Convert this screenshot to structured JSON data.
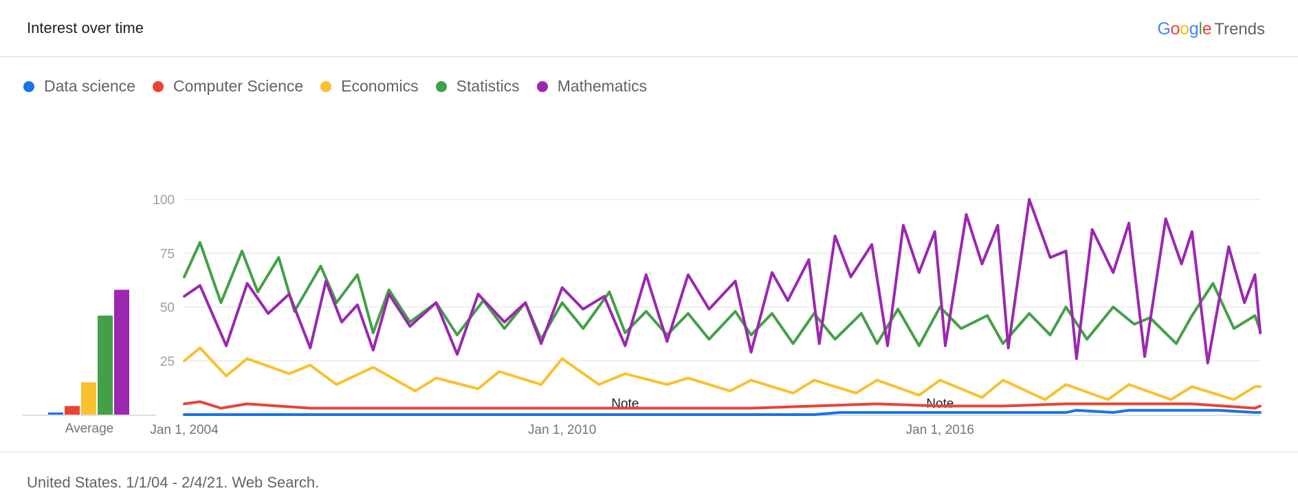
{
  "header": {
    "title": "Interest over time",
    "logo_letters": [
      {
        "ch": "G",
        "color": "#4285F4"
      },
      {
        "ch": "o",
        "color": "#EA4335"
      },
      {
        "ch": "o",
        "color": "#FBBC05"
      },
      {
        "ch": "g",
        "color": "#4285F4"
      },
      {
        "ch": "l",
        "color": "#34A853"
      },
      {
        "ch": "e",
        "color": "#EA4335"
      }
    ],
    "logo_suffix": "Trends"
  },
  "footer": {
    "text": "United States. 1/1/04 - 2/4/21. Web Search."
  },
  "chart_data": {
    "type": "line",
    "title": "",
    "x_range": [
      "2004-01",
      "2021-02"
    ],
    "x_ticks": [
      "Jan 1, 2004",
      "Jan 1, 2010",
      "Jan 1, 2016"
    ],
    "y_ticks": [
      25,
      50,
      75,
      100
    ],
    "ylim": [
      0,
      100
    ],
    "grid": true,
    "legend": "top-left",
    "average_label": "Average",
    "notes": [
      {
        "date": "2011-01",
        "label": "Note"
      },
      {
        "date": "2016-01",
        "label": "Note"
      }
    ],
    "series": [
      {
        "name": "Data science",
        "color": "#1A73E8",
        "average": 1,
        "keypoints": [
          [
            "2004-01",
            0
          ],
          [
            "2014-01",
            0
          ],
          [
            "2014-06",
            1
          ],
          [
            "2015-06",
            1
          ],
          [
            "2018-01",
            1
          ],
          [
            "2018-03",
            2
          ],
          [
            "2018-10",
            1
          ],
          [
            "2019-01",
            2
          ],
          [
            "2020-06",
            2
          ],
          [
            "2021-01",
            1
          ],
          [
            "2021-02",
            1
          ]
        ]
      },
      {
        "name": "Computer Science",
        "color": "#EA4335",
        "average": 4,
        "keypoints": [
          [
            "2004-01",
            5
          ],
          [
            "2004-04",
            6
          ],
          [
            "2004-08",
            3
          ],
          [
            "2005-01",
            5
          ],
          [
            "2006-01",
            3
          ],
          [
            "2007-01",
            3
          ],
          [
            "2008-01",
            3
          ],
          [
            "2009-01",
            3
          ],
          [
            "2010-01",
            3
          ],
          [
            "2011-01",
            3
          ],
          [
            "2012-01",
            3
          ],
          [
            "2013-01",
            3
          ],
          [
            "2014-01",
            4
          ],
          [
            "2015-01",
            5
          ],
          [
            "2016-01",
            4
          ],
          [
            "2017-01",
            4
          ],
          [
            "2018-01",
            5
          ],
          [
            "2019-01",
            5
          ],
          [
            "2020-01",
            5
          ],
          [
            "2021-01",
            3
          ],
          [
            "2021-02",
            4
          ]
        ]
      },
      {
        "name": "Economics",
        "color": "#FBC02D",
        "average": 15,
        "keypoints": [
          [
            "2004-01",
            25
          ],
          [
            "2004-04",
            31
          ],
          [
            "2004-09",
            18
          ],
          [
            "2005-01",
            26
          ],
          [
            "2005-09",
            19
          ],
          [
            "2006-01",
            23
          ],
          [
            "2006-06",
            14
          ],
          [
            "2007-01",
            22
          ],
          [
            "2007-09",
            11
          ],
          [
            "2008-01",
            17
          ],
          [
            "2008-09",
            12
          ],
          [
            "2009-01",
            20
          ],
          [
            "2009-09",
            14
          ],
          [
            "2010-01",
            26
          ],
          [
            "2010-08",
            14
          ],
          [
            "2011-01",
            19
          ],
          [
            "2011-09",
            14
          ],
          [
            "2012-01",
            17
          ],
          [
            "2012-09",
            11
          ],
          [
            "2013-01",
            16
          ],
          [
            "2013-09",
            10
          ],
          [
            "2014-01",
            16
          ],
          [
            "2014-09",
            10
          ],
          [
            "2015-01",
            16
          ],
          [
            "2015-09",
            9
          ],
          [
            "2016-01",
            16
          ],
          [
            "2016-09",
            8
          ],
          [
            "2017-01",
            16
          ],
          [
            "2017-09",
            7
          ],
          [
            "2018-01",
            14
          ],
          [
            "2018-09",
            7
          ],
          [
            "2019-01",
            14
          ],
          [
            "2019-09",
            7
          ],
          [
            "2020-01",
            13
          ],
          [
            "2020-09",
            7
          ],
          [
            "2021-01",
            13
          ],
          [
            "2021-02",
            13
          ]
        ]
      },
      {
        "name": "Statistics",
        "color": "#43A047",
        "average": 46,
        "keypoints": [
          [
            "2004-01",
            64
          ],
          [
            "2004-04",
            80
          ],
          [
            "2004-08",
            52
          ],
          [
            "2004-12",
            76
          ],
          [
            "2005-03",
            57
          ],
          [
            "2005-07",
            73
          ],
          [
            "2005-10",
            48
          ],
          [
            "2006-03",
            69
          ],
          [
            "2006-06",
            52
          ],
          [
            "2006-10",
            65
          ],
          [
            "2007-01",
            38
          ],
          [
            "2007-04",
            58
          ],
          [
            "2007-08",
            43
          ],
          [
            "2008-01",
            52
          ],
          [
            "2008-05",
            37
          ],
          [
            "2008-10",
            53
          ],
          [
            "2009-02",
            40
          ],
          [
            "2009-06",
            52
          ],
          [
            "2009-09",
            35
          ],
          [
            "2010-01",
            52
          ],
          [
            "2010-05",
            40
          ],
          [
            "2010-10",
            57
          ],
          [
            "2011-01",
            38
          ],
          [
            "2011-05",
            48
          ],
          [
            "2011-09",
            37
          ],
          [
            "2012-01",
            47
          ],
          [
            "2012-05",
            35
          ],
          [
            "2012-10",
            48
          ],
          [
            "2013-01",
            37
          ],
          [
            "2013-05",
            47
          ],
          [
            "2013-09",
            33
          ],
          [
            "2014-01",
            47
          ],
          [
            "2014-05",
            35
          ],
          [
            "2014-10",
            47
          ],
          [
            "2015-01",
            33
          ],
          [
            "2015-05",
            49
          ],
          [
            "2015-09",
            32
          ],
          [
            "2016-01",
            50
          ],
          [
            "2016-05",
            40
          ],
          [
            "2016-10",
            46
          ],
          [
            "2017-01",
            33
          ],
          [
            "2017-06",
            47
          ],
          [
            "2017-10",
            37
          ],
          [
            "2018-01",
            50
          ],
          [
            "2018-05",
            35
          ],
          [
            "2018-10",
            50
          ],
          [
            "2019-02",
            42
          ],
          [
            "2019-05",
            45
          ],
          [
            "2019-10",
            33
          ],
          [
            "2020-01",
            46
          ],
          [
            "2020-05",
            61
          ],
          [
            "2020-09",
            40
          ],
          [
            "2021-01",
            46
          ],
          [
            "2021-02",
            39
          ]
        ]
      },
      {
        "name": "Mathematics",
        "color": "#9C27B0",
        "average": 58,
        "keypoints": [
          [
            "2004-01",
            55
          ],
          [
            "2004-04",
            60
          ],
          [
            "2004-09",
            32
          ],
          [
            "2005-01",
            61
          ],
          [
            "2005-05",
            47
          ],
          [
            "2005-09",
            56
          ],
          [
            "2006-01",
            31
          ],
          [
            "2006-04",
            62
          ],
          [
            "2006-07",
            43
          ],
          [
            "2006-10",
            51
          ],
          [
            "2007-01",
            30
          ],
          [
            "2007-04",
            56
          ],
          [
            "2007-08",
            41
          ],
          [
            "2008-01",
            52
          ],
          [
            "2008-05",
            28
          ],
          [
            "2008-09",
            56
          ],
          [
            "2009-02",
            43
          ],
          [
            "2009-06",
            52
          ],
          [
            "2009-09",
            33
          ],
          [
            "2010-01",
            59
          ],
          [
            "2010-05",
            49
          ],
          [
            "2010-09",
            55
          ],
          [
            "2011-01",
            32
          ],
          [
            "2011-05",
            65
          ],
          [
            "2011-09",
            34
          ],
          [
            "2012-01",
            65
          ],
          [
            "2012-05",
            49
          ],
          [
            "2012-10",
            62
          ],
          [
            "2013-01",
            29
          ],
          [
            "2013-05",
            66
          ],
          [
            "2013-08",
            53
          ],
          [
            "2013-12",
            72
          ],
          [
            "2014-02",
            33
          ],
          [
            "2014-05",
            83
          ],
          [
            "2014-08",
            64
          ],
          [
            "2014-12",
            79
          ],
          [
            "2015-03",
            32
          ],
          [
            "2015-06",
            88
          ],
          [
            "2015-09",
            66
          ],
          [
            "2015-12",
            85
          ],
          [
            "2016-02",
            32
          ],
          [
            "2016-06",
            93
          ],
          [
            "2016-09",
            70
          ],
          [
            "2016-12",
            88
          ],
          [
            "2017-02",
            31
          ],
          [
            "2017-06",
            100
          ],
          [
            "2017-10",
            73
          ],
          [
            "2018-01",
            76
          ],
          [
            "2018-03",
            26
          ],
          [
            "2018-06",
            86
          ],
          [
            "2018-10",
            66
          ],
          [
            "2019-01",
            89
          ],
          [
            "2019-04",
            27
          ],
          [
            "2019-08",
            91
          ],
          [
            "2019-11",
            70
          ],
          [
            "2020-01",
            85
          ],
          [
            "2020-04",
            24
          ],
          [
            "2020-08",
            78
          ],
          [
            "2020-11",
            52
          ],
          [
            "2021-01",
            65
          ],
          [
            "2021-02",
            38
          ]
        ]
      }
    ]
  }
}
